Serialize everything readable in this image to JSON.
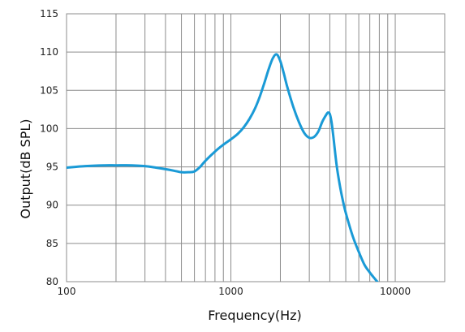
{
  "chart_data": {
    "type": "line",
    "title": "",
    "xlabel": "Frequency(Hz)",
    "ylabel": "Output(dB SPL)",
    "x_scale": "log",
    "xlim": [
      100,
      20000
    ],
    "ylim": [
      80,
      115
    ],
    "x_tick_labels": [
      {
        "value": 100,
        "label": "100"
      },
      {
        "value": 1000,
        "label": "1000"
      },
      {
        "value": 10000,
        "label": "10000"
      }
    ],
    "y_tick_labels": [
      {
        "value": 80,
        "label": "80"
      },
      {
        "value": 85,
        "label": "85"
      },
      {
        "value": 90,
        "label": "90"
      },
      {
        "value": 95,
        "label": "95"
      },
      {
        "value": 100,
        "label": "100"
      },
      {
        "value": 105,
        "label": "105"
      },
      {
        "value": 110,
        "label": "110"
      },
      {
        "value": 115,
        "label": "115"
      }
    ],
    "x_grid_values": [
      100,
      200,
      300,
      400,
      500,
      600,
      700,
      800,
      900,
      1000,
      2000,
      3000,
      4000,
      5000,
      6000,
      7000,
      8000,
      9000,
      10000,
      20000
    ],
    "y_grid_values": [
      80,
      85,
      90,
      95,
      100,
      105,
      110,
      115
    ],
    "grid": true,
    "colors": {
      "line": "#1a9ad6",
      "grid": "#8c8c8c",
      "frame": "#8c8c8c"
    },
    "series": [
      {
        "x": [
          100,
          130,
          170,
          200,
          250,
          300,
          350,
          400,
          450,
          500,
          550,
          600,
          650,
          700,
          800,
          900,
          1000,
          1100,
          1200,
          1300,
          1400,
          1500,
          1600,
          1700,
          1800,
          1900,
          2000,
          2100,
          2200,
          2400,
          2600,
          2800,
          3000,
          3200,
          3400,
          3600,
          3800,
          3900,
          4000,
          4100,
          4200,
          4400,
          4600,
          4800,
          5000,
          5500,
          6000,
          6500,
          7000,
          7500,
          8000,
          8500,
          9000,
          9500,
          9800
        ],
        "y": [
          94.9,
          95.1,
          95.2,
          95.2,
          95.2,
          95.1,
          94.9,
          94.7,
          94.5,
          94.3,
          94.3,
          94.4,
          95.0,
          95.8,
          97.0,
          97.9,
          98.6,
          99.3,
          100.2,
          101.3,
          102.6,
          104.2,
          106.0,
          107.8,
          109.2,
          109.7,
          108.8,
          107.2,
          105.5,
          102.8,
          100.8,
          99.4,
          98.8,
          98.9,
          99.6,
          100.9,
          101.8,
          102.1,
          101.9,
          100.8,
          99.0,
          95.2,
          92.6,
          90.6,
          89.0,
          86.0,
          83.9,
          82.2,
          81.2,
          80.4,
          79.7,
          79.2,
          78.9,
          78.7,
          78.6
        ]
      }
    ]
  }
}
